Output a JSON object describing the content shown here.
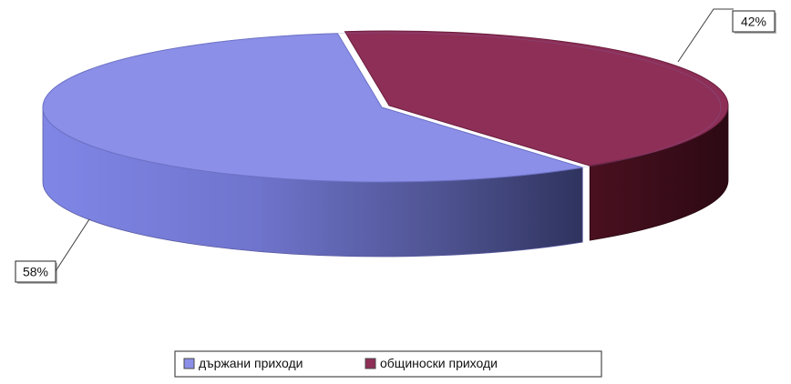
{
  "chart_data": {
    "type": "pie",
    "style": "3d-exploded-cylinder",
    "title": "",
    "legend_position": "bottom-center",
    "series": [
      {
        "name": "държани приходи",
        "value": 58,
        "label": "58%",
        "color": "#8B8FE8"
      },
      {
        "name": "общиноски приходи",
        "value": 42,
        "label": "42%",
        "color": "#8E2F57"
      }
    ]
  }
}
